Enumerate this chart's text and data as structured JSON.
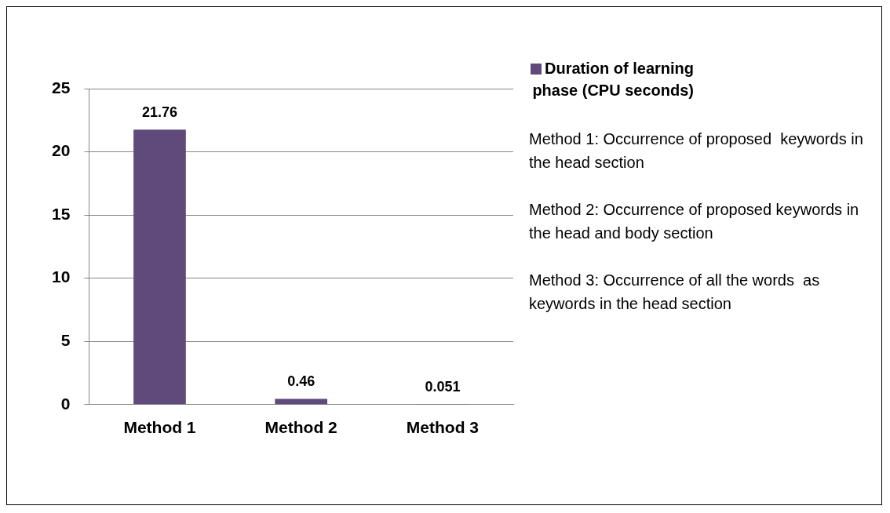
{
  "chart_data": {
    "type": "bar",
    "categories": [
      "Method 1",
      "Method 2",
      "Method 3"
    ],
    "series": [
      {
        "name": "Duration of learning phase (CPU seconds)",
        "color": "#604a7b",
        "values": [
          21.76,
          0.46,
          0.051
        ]
      }
    ],
    "ylim": [
      0,
      25
    ],
    "yticks": [
      0,
      5,
      10,
      15,
      20,
      25
    ],
    "grid": "y",
    "legend": "top right",
    "data_labels": true,
    "annotations": [
      "Method 1: Occurrence of proposed  keywords in the head section",
      "Method 2: Occurrence of proposed keywords in the head and body section",
      "Method 3: Occurrence of all the words  as keywords in the head section"
    ]
  }
}
